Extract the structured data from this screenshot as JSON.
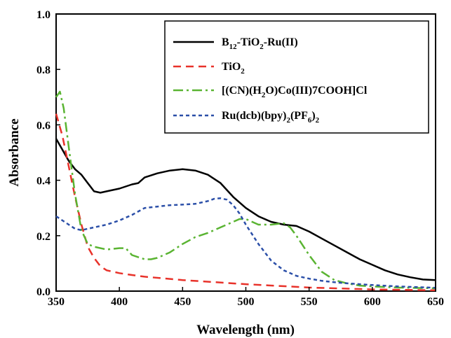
{
  "chart_data": {
    "type": "line",
    "xlabel": "Wavelength (nm)",
    "ylabel": "Absorbance",
    "xlim": [
      350,
      650
    ],
    "ylim": [
      0.0,
      1.0
    ],
    "xticks": [
      "350",
      "400",
      "450",
      "500",
      "550",
      "600",
      "650"
    ],
    "yticks": [
      "0.0",
      "0.2",
      "0.4",
      "0.6",
      "0.8",
      "1.0"
    ],
    "grid": false,
    "legend_position": "top-right",
    "series": [
      {
        "name": "B12-TiO2-Ru(II)",
        "legend_parts": [
          [
            "B",
            ""
          ],
          [
            "12",
            "sub"
          ],
          [
            "-TiO",
            ""
          ],
          [
            "2",
            "sub"
          ],
          [
            "-Ru(II)",
            ""
          ]
        ],
        "color": "#000000",
        "style": "solid",
        "x": [
          350,
          355,
          360,
          365,
          370,
          375,
          380,
          385,
          390,
          400,
          410,
          415,
          420,
          430,
          440,
          450,
          460,
          470,
          480,
          490,
          500,
          510,
          520,
          530,
          540,
          550,
          560,
          570,
          580,
          590,
          600,
          610,
          620,
          630,
          640,
          650
        ],
        "y": [
          0.55,
          0.51,
          0.47,
          0.44,
          0.42,
          0.39,
          0.36,
          0.355,
          0.36,
          0.37,
          0.385,
          0.39,
          0.41,
          0.425,
          0.435,
          0.44,
          0.435,
          0.42,
          0.39,
          0.34,
          0.3,
          0.27,
          0.25,
          0.24,
          0.235,
          0.215,
          0.19,
          0.165,
          0.14,
          0.115,
          0.095,
          0.075,
          0.06,
          0.05,
          0.042,
          0.04
        ]
      },
      {
        "name": "TiO2",
        "legend_parts": [
          [
            "TiO",
            ""
          ],
          [
            "2",
            "sub"
          ]
        ],
        "color": "#e8322a",
        "style": "dashed",
        "x": [
          350,
          355,
          360,
          365,
          370,
          375,
          380,
          385,
          390,
          400,
          410,
          420,
          450,
          500,
          550,
          600,
          650
        ],
        "y": [
          0.64,
          0.56,
          0.45,
          0.34,
          0.24,
          0.16,
          0.12,
          0.09,
          0.075,
          0.065,
          0.058,
          0.052,
          0.04,
          0.025,
          0.013,
          0.006,
          0.003
        ]
      },
      {
        "name": "[(CN)(H2O)Co(III)7COOH]Cl",
        "legend_parts": [
          [
            "[(CN)(H",
            ""
          ],
          [
            "2",
            "sub"
          ],
          [
            "O)Co(III)7COOH]Cl",
            ""
          ]
        ],
        "color": "#5ab432",
        "style": "dashdot",
        "x": [
          350,
          353,
          356,
          360,
          365,
          370,
          375,
          380,
          390,
          400,
          405,
          410,
          420,
          425,
          430,
          440,
          450,
          460,
          470,
          480,
          490,
          495,
          500,
          505,
          510,
          520,
          530,
          535,
          540,
          550,
          560,
          570,
          580,
          590,
          600,
          620,
          650
        ],
        "y": [
          0.7,
          0.72,
          0.66,
          0.52,
          0.35,
          0.22,
          0.17,
          0.16,
          0.15,
          0.155,
          0.155,
          0.13,
          0.115,
          0.115,
          0.12,
          0.14,
          0.17,
          0.195,
          0.21,
          0.23,
          0.25,
          0.26,
          0.26,
          0.25,
          0.24,
          0.24,
          0.245,
          0.23,
          0.2,
          0.13,
          0.07,
          0.04,
          0.028,
          0.02,
          0.017,
          0.013,
          0.01
        ]
      },
      {
        "name": "Ru(dcb)(bpy)2(PF6)2",
        "legend_parts": [
          [
            "Ru(dcb)(bpy)",
            ""
          ],
          [
            "2",
            "sub"
          ],
          [
            "(PF",
            ""
          ],
          [
            "6",
            "sub"
          ],
          [
            ")",
            ""
          ],
          [
            "2",
            "sub"
          ]
        ],
        "color": "#2b4fa8",
        "style": "dotted",
        "x": [
          350,
          355,
          360,
          365,
          370,
          375,
          380,
          390,
          400,
          410,
          420,
          430,
          440,
          450,
          460,
          470,
          475,
          480,
          485,
          490,
          495,
          500,
          510,
          520,
          530,
          540,
          550,
          560,
          570,
          580,
          600,
          620,
          650
        ],
        "y": [
          0.27,
          0.255,
          0.24,
          0.225,
          0.22,
          0.225,
          0.23,
          0.24,
          0.255,
          0.275,
          0.3,
          0.305,
          0.31,
          0.312,
          0.315,
          0.325,
          0.333,
          0.335,
          0.33,
          0.31,
          0.28,
          0.24,
          0.17,
          0.11,
          0.075,
          0.055,
          0.045,
          0.037,
          0.032,
          0.028,
          0.022,
          0.017,
          0.012
        ]
      }
    ]
  }
}
